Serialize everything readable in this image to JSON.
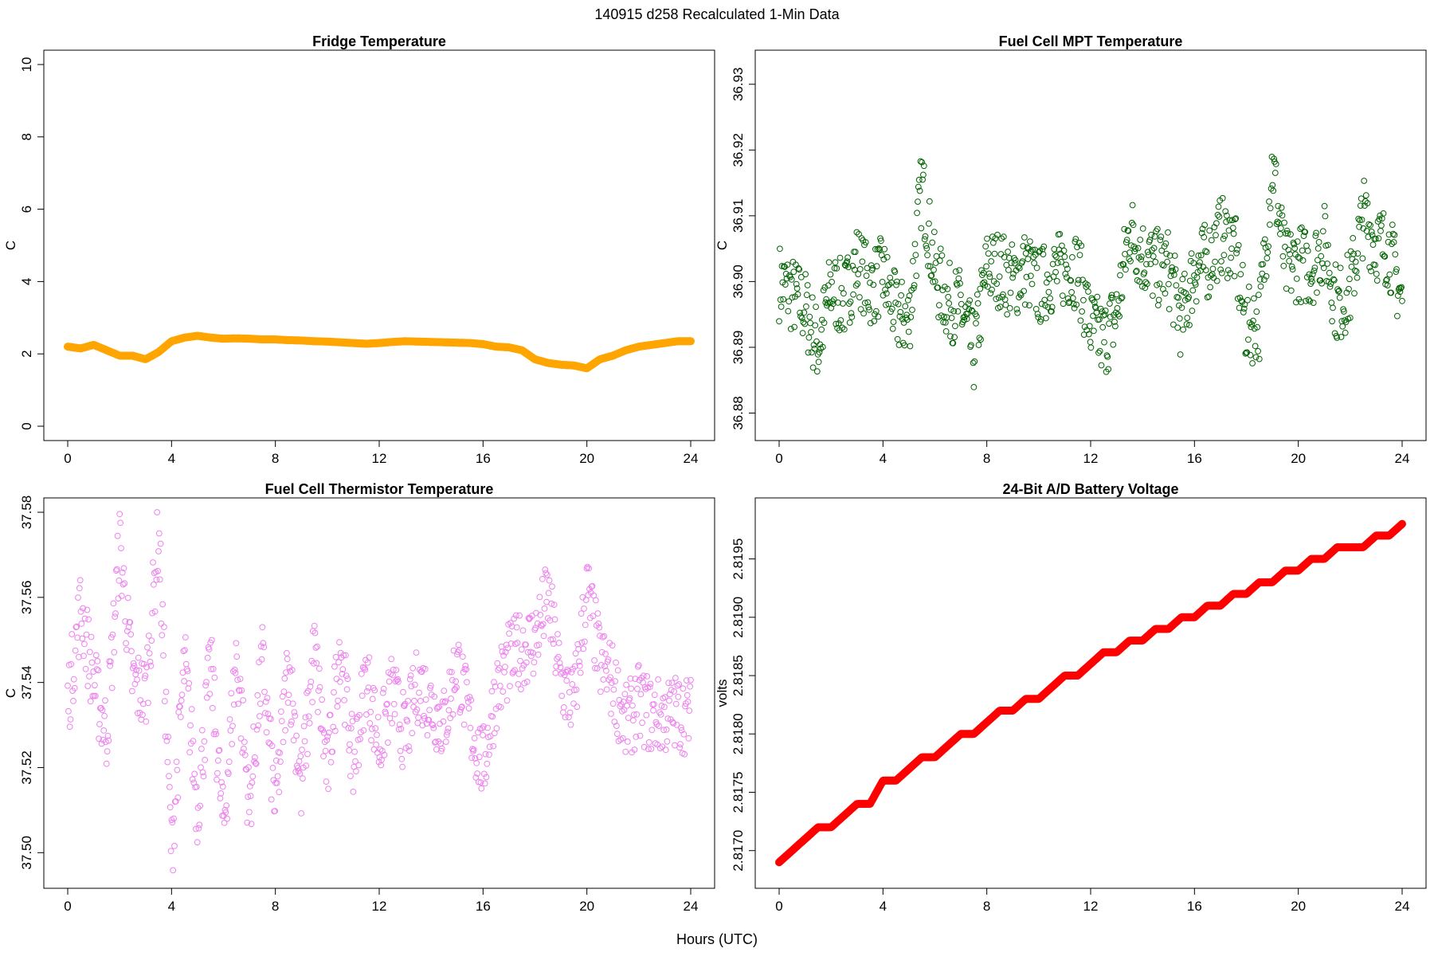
{
  "suptitle": "140915   d258   Recalculated 1-Min Data",
  "xlabel": "Hours (UTC)",
  "chart_data": [
    {
      "id": "fridge",
      "type": "scatter",
      "marker": "filled",
      "color": "#FFA500",
      "title": "Fridge Temperature",
      "ylabel": "C",
      "xlim": [
        0,
        24
      ],
      "ylim": [
        0,
        10
      ],
      "xticks": [
        "0",
        "4",
        "8",
        "12",
        "16",
        "20",
        "24"
      ],
      "yticks": [
        "0",
        "2",
        "4",
        "6",
        "8",
        "10"
      ],
      "series": [
        {
          "x": [
            0,
            0.5,
            1,
            1.5,
            2,
            2.5,
            3,
            3.5,
            4,
            4.5,
            5,
            5.5,
            6,
            6.5,
            7,
            7.5,
            8,
            8.5,
            9,
            9.5,
            10,
            10.5,
            11,
            11.5,
            12,
            12.5,
            13,
            13.5,
            14,
            14.5,
            15,
            15.5,
            16,
            16.5,
            17,
            17.5,
            18,
            18.5,
            19,
            19.5,
            20,
            20.5,
            21,
            21.5,
            22,
            22.5,
            23,
            23.5,
            24
          ],
          "y": [
            2.2,
            2.15,
            2.25,
            2.1,
            1.95,
            1.95,
            1.85,
            2.05,
            2.35,
            2.45,
            2.5,
            2.45,
            2.42,
            2.43,
            2.42,
            2.4,
            2.4,
            2.38,
            2.37,
            2.35,
            2.34,
            2.32,
            2.3,
            2.28,
            2.3,
            2.33,
            2.35,
            2.34,
            2.33,
            2.32,
            2.31,
            2.3,
            2.27,
            2.2,
            2.18,
            2.1,
            1.85,
            1.75,
            1.7,
            1.68,
            1.6,
            1.85,
            1.95,
            2.1,
            2.2,
            2.25,
            2.3,
            2.35,
            2.35
          ]
        }
      ]
    },
    {
      "id": "mpt",
      "type": "scatter",
      "marker": "open-circle",
      "color": "#006400",
      "title": "Fuel Cell MPT Temperature",
      "ylabel": "C",
      "xlim": [
        0,
        24
      ],
      "ylim": [
        36.878,
        36.933
      ],
      "xticks": [
        "0",
        "4",
        "8",
        "12",
        "16",
        "20",
        "24"
      ],
      "yticks": [
        "36.88",
        "36.89",
        "36.90",
        "36.91",
        "36.92",
        "36.93"
      ],
      "series": [
        {
          "x": [
            0,
            0.5,
            1,
            1.5,
            2,
            2.5,
            3,
            3.5,
            4,
            4.5,
            5,
            5.5,
            6,
            6.5,
            7,
            7.5,
            8,
            8.5,
            9,
            9.5,
            10,
            10.5,
            11,
            11.5,
            12,
            12.5,
            13,
            13.5,
            14,
            14.5,
            15,
            15.5,
            16,
            16.5,
            17,
            17.5,
            18,
            18.5,
            19,
            19.5,
            20,
            20.5,
            21,
            21.5,
            22,
            22.5,
            23,
            23.5,
            24
          ],
          "y": [
            36.9,
            36.898,
            36.896,
            36.89,
            36.899,
            36.897,
            36.903,
            36.899,
            36.901,
            36.895,
            36.894,
            36.915,
            36.901,
            36.897,
            36.896,
            36.889,
            36.902,
            36.902,
            36.9,
            36.902,
            36.899,
            36.901,
            36.902,
            36.902,
            36.893,
            36.891,
            36.895,
            36.908,
            36.904,
            36.902,
            36.902,
            36.894,
            36.902,
            36.903,
            36.907,
            36.906,
            36.893,
            36.894,
            36.918,
            36.902,
            36.903,
            36.902,
            36.906,
            36.896,
            36.899,
            36.91,
            36.906,
            36.905,
            36.897
          ]
        }
      ]
    },
    {
      "id": "thermistor",
      "type": "scatter",
      "marker": "open-circle",
      "color": "#EE82EE",
      "title": "Fuel Cell Thermistor Temperature",
      "ylabel": "C",
      "xlim": [
        0,
        24
      ],
      "ylim": [
        37.495,
        37.58
      ],
      "xticks": [
        "0",
        "4",
        "8",
        "12",
        "16",
        "20",
        "24"
      ],
      "yticks": [
        "37.50",
        "37.52",
        "37.54",
        "37.56",
        "37.58"
      ],
      "series": [
        {
          "x": [
            0,
            0.5,
            1,
            1.5,
            2,
            2.5,
            3,
            3.5,
            4,
            4.5,
            5,
            5.5,
            6,
            6.5,
            7,
            7.5,
            8,
            8.5,
            9,
            9.5,
            10,
            10.5,
            11,
            11.5,
            12,
            12.5,
            13,
            13.5,
            14,
            14.5,
            15,
            15.5,
            16,
            16.5,
            17,
            17.5,
            18,
            18.5,
            19,
            19.5,
            20,
            20.5,
            21,
            21.5,
            22,
            22.5,
            23,
            23.5,
            24
          ],
          "y": [
            37.535,
            37.558,
            37.54,
            37.528,
            37.573,
            37.54,
            37.537,
            37.576,
            37.5,
            37.545,
            37.51,
            37.545,
            37.505,
            37.547,
            37.51,
            37.545,
            37.51,
            37.545,
            37.515,
            37.548,
            37.518,
            37.55,
            37.52,
            37.542,
            37.525,
            37.538,
            37.527,
            37.54,
            37.535,
            37.53,
            37.545,
            37.53,
            37.52,
            37.538,
            37.545,
            37.548,
            37.55,
            37.56,
            37.54,
            37.535,
            37.562,
            37.545,
            37.54,
            37.53,
            37.535,
            37.532,
            37.532,
            37.533,
            37.532
          ]
        }
      ]
    },
    {
      "id": "battery",
      "type": "scatter",
      "marker": "filled",
      "color": "#FF0000",
      "title": "24-Bit A/D Battery Voltage",
      "ylabel": "volts",
      "xlim": [
        0,
        24
      ],
      "ylim": [
        2.8168,
        2.8199
      ],
      "xticks": [
        "0",
        "4",
        "8",
        "12",
        "16",
        "20",
        "24"
      ],
      "yticks": [
        "2.8170",
        "2.8175",
        "2.8180",
        "2.8185",
        "2.8190",
        "2.8195"
      ],
      "series": [
        {
          "x": [
            0,
            0.5,
            1,
            1.5,
            2,
            2.5,
            3,
            3.5,
            4,
            4.5,
            5,
            5.5,
            6,
            6.5,
            7,
            7.5,
            8,
            8.5,
            9,
            9.5,
            10,
            10.5,
            11,
            11.5,
            12,
            12.5,
            13,
            13.5,
            14,
            14.5,
            15,
            15.5,
            16,
            16.5,
            17,
            17.5,
            18,
            18.5,
            19,
            19.5,
            20,
            20.5,
            21,
            21.5,
            22,
            22.5,
            23,
            23.5,
            24
          ],
          "y": [
            2.8169,
            2.817,
            2.8171,
            2.8172,
            2.8172,
            2.8173,
            2.8174,
            2.8174,
            2.8176,
            2.8176,
            2.8177,
            2.8178,
            2.8178,
            2.8179,
            2.818,
            2.818,
            2.8181,
            2.8182,
            2.8182,
            2.8183,
            2.8183,
            2.8184,
            2.8185,
            2.8185,
            2.8186,
            2.8187,
            2.8187,
            2.8188,
            2.8188,
            2.8189,
            2.8189,
            2.819,
            2.819,
            2.8191,
            2.8191,
            2.8192,
            2.8192,
            2.8193,
            2.8193,
            2.8194,
            2.8194,
            2.8195,
            2.8195,
            2.8196,
            2.8196,
            2.8196,
            2.8197,
            2.8197,
            2.8198
          ]
        }
      ]
    }
  ]
}
